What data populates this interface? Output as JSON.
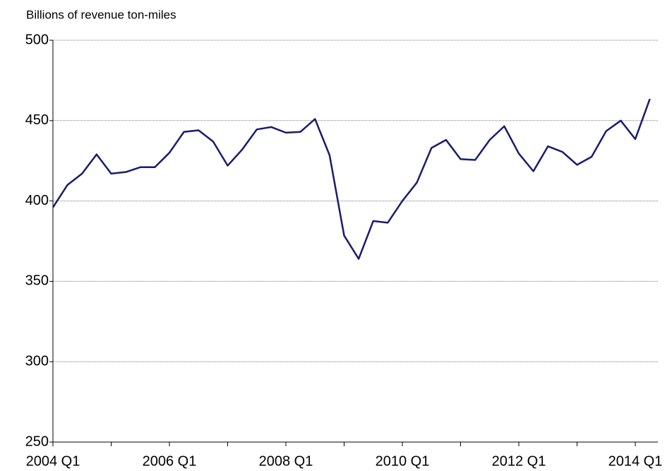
{
  "chart_data": {
    "type": "line",
    "ylabel": "Billions of revenue ton-miles",
    "categories": [
      "2004 Q1",
      null,
      null,
      null,
      null,
      null,
      null,
      null,
      "2006 Q1",
      null,
      null,
      null,
      null,
      null,
      null,
      null,
      "2008 Q1",
      null,
      null,
      null,
      null,
      null,
      null,
      null,
      "2010 Q1",
      null,
      null,
      null,
      null,
      null,
      null,
      null,
      "2012 Q1",
      null,
      null,
      null,
      null,
      null,
      null,
      null,
      "2014 Q1",
      null
    ],
    "values": [
      396,
      410,
      417,
      429,
      417,
      418,
      421,
      421,
      430,
      443,
      444,
      437,
      422,
      432,
      444.5,
      446,
      442.5,
      443,
      451,
      428.5,
      378.5,
      364,
      387.5,
      386.5,
      400,
      411.5,
      433,
      438,
      426,
      425.5,
      438,
      446.5,
      429.5,
      418.5,
      434,
      430.5,
      422.5,
      427.5,
      443.5,
      450,
      438.5,
      463.5
    ],
    "color": "#1b1b6f",
    "ylim": [
      250,
      500
    ],
    "yticks": [
      250,
      300,
      350,
      400,
      450,
      500
    ],
    "grid": true
  }
}
